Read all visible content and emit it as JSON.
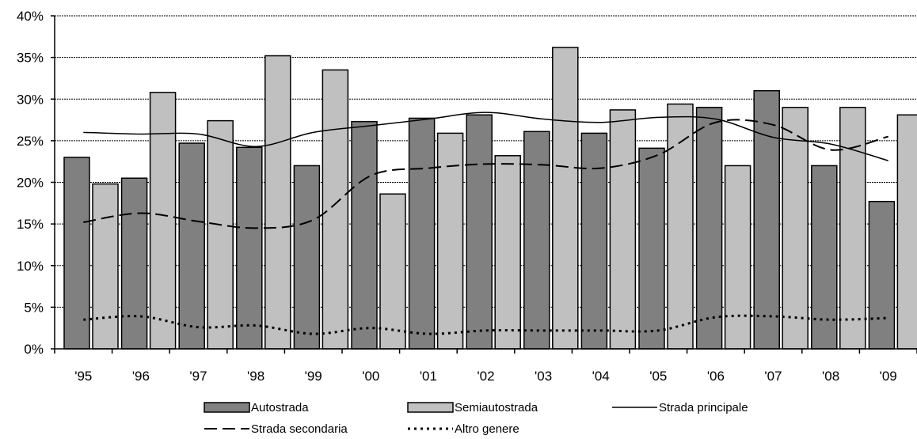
{
  "chart_data": {
    "type": "bar",
    "categories": [
      "'95",
      "'96",
      "'97",
      "'98",
      "'99",
      "'00",
      "'01",
      "'02",
      "'03",
      "'04",
      "'05",
      "'06",
      "'07",
      "'08",
      "'09"
    ],
    "y_tick_labels": [
      "0%",
      "5%",
      "10%",
      "15%",
      "20%",
      "25%",
      "30%",
      "35%",
      "40%"
    ],
    "ylim": [
      0,
      40
    ],
    "grid": true,
    "legend_position": "bottom",
    "series": [
      {
        "name": "Autostrada",
        "kind": "bar",
        "color": "#808080",
        "values": [
          23.0,
          20.5,
          24.7,
          24.2,
          22.0,
          27.3,
          27.7,
          28.1,
          26.1,
          25.9,
          24.1,
          29.0,
          31.0,
          22.0,
          17.7
        ]
      },
      {
        "name": "Semiautostrada",
        "kind": "bar",
        "color": "#c0c0c0",
        "values": [
          19.8,
          30.8,
          27.4,
          35.2,
          33.5,
          18.6,
          25.9,
          23.2,
          36.2,
          28.7,
          29.4,
          22.0,
          29.0,
          29.0,
          28.1
        ]
      },
      {
        "name": "Strada principale",
        "kind": "line",
        "dash": "solid",
        "values": [
          26.0,
          25.8,
          25.8,
          24.3,
          26.0,
          26.8,
          27.6,
          28.4,
          27.6,
          27.2,
          27.8,
          27.6,
          25.4,
          24.6,
          22.6
        ]
      },
      {
        "name": "Strada secondaria",
        "kind": "line",
        "dash": "dashed",
        "values": [
          15.2,
          16.3,
          15.3,
          14.5,
          15.5,
          20.8,
          21.7,
          22.2,
          22.1,
          21.7,
          23.3,
          27.2,
          26.9,
          23.9,
          25.5
        ]
      },
      {
        "name": "Altro genere",
        "kind": "line",
        "dash": "dotted",
        "values": [
          3.5,
          3.9,
          2.6,
          2.8,
          1.8,
          2.5,
          1.8,
          2.2,
          2.2,
          2.2,
          2.2,
          3.8,
          3.9,
          3.5,
          3.7
        ]
      }
    ]
  }
}
